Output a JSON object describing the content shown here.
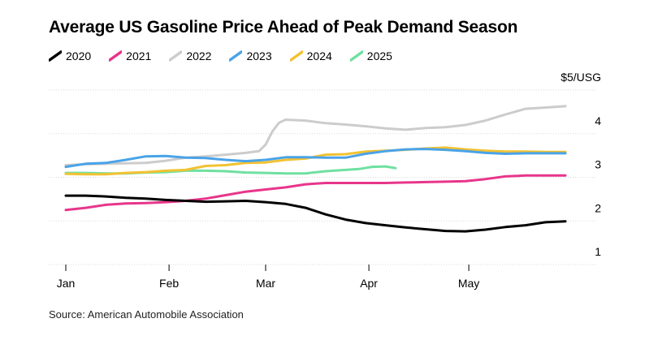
{
  "title": "Average US Gasoline Price Ahead of Peak Demand Season",
  "source": "Source: American Automobile Association",
  "chart_data": {
    "type": "line",
    "title": "Average US Gasoline Price Ahead of Peak Demand Season",
    "xlabel": "",
    "ylabel": "",
    "unit_label": "$5/USG",
    "x_ticks": [
      {
        "label": "Jan",
        "day": 0
      },
      {
        "label": "Feb",
        "day": 31
      },
      {
        "label": "Mar",
        "day": 60
      },
      {
        "label": "Apr",
        "day": 91
      },
      {
        "label": "May",
        "day": 121
      }
    ],
    "y_ticks": [
      {
        "label": "$5/USG",
        "value": 5
      },
      {
        "label": "4",
        "value": 4
      },
      {
        "label": "3",
        "value": 3
      },
      {
        "label": "2",
        "value": 2
      },
      {
        "label": "1",
        "value": 1
      }
    ],
    "xlim": [
      0,
      152
    ],
    "ylim": [
      1,
      5
    ],
    "grid": true,
    "legend_position": "top-left",
    "series": [
      {
        "name": "2020",
        "color": "#000000",
        "x": [
          0,
          6,
          12,
          18,
          24,
          30,
          36,
          42,
          48,
          54,
          60,
          66,
          72,
          78,
          84,
          90,
          96,
          102,
          108,
          114,
          120,
          126,
          132,
          138,
          144,
          150
        ],
        "values": [
          2.58,
          2.58,
          2.56,
          2.53,
          2.51,
          2.48,
          2.46,
          2.44,
          2.45,
          2.46,
          2.43,
          2.39,
          2.3,
          2.15,
          2.03,
          1.95,
          1.9,
          1.85,
          1.81,
          1.77,
          1.76,
          1.8,
          1.86,
          1.9,
          1.97,
          1.99
        ]
      },
      {
        "name": "2021",
        "color": "#e8358b",
        "x": [
          0,
          6,
          12,
          18,
          24,
          30,
          36,
          42,
          48,
          54,
          60,
          66,
          72,
          78,
          84,
          90,
          96,
          102,
          108,
          114,
          120,
          126,
          132,
          138,
          144,
          150
        ],
        "values": [
          2.25,
          2.3,
          2.37,
          2.4,
          2.41,
          2.43,
          2.46,
          2.51,
          2.59,
          2.67,
          2.72,
          2.77,
          2.84,
          2.87,
          2.87,
          2.87,
          2.87,
          2.88,
          2.89,
          2.9,
          2.91,
          2.96,
          3.02,
          3.04,
          3.04,
          3.04
        ]
      },
      {
        "name": "2022",
        "color": "#cccccc",
        "x": [
          0,
          6,
          12,
          18,
          24,
          30,
          36,
          42,
          48,
          54,
          58,
          60,
          62,
          64,
          66,
          72,
          78,
          84,
          90,
          96,
          102,
          108,
          114,
          120,
          126,
          132,
          138,
          144,
          150
        ],
        "values": [
          3.28,
          3.3,
          3.31,
          3.32,
          3.33,
          3.38,
          3.45,
          3.48,
          3.52,
          3.56,
          3.6,
          3.75,
          4.05,
          4.25,
          4.32,
          4.3,
          4.24,
          4.21,
          4.17,
          4.12,
          4.09,
          4.13,
          4.15,
          4.2,
          4.3,
          4.44,
          4.57,
          4.6,
          4.63
        ]
      },
      {
        "name": "2023",
        "color": "#4aa3e8",
        "x": [
          0,
          6,
          12,
          18,
          24,
          30,
          36,
          42,
          48,
          54,
          60,
          66,
          72,
          78,
          84,
          90,
          96,
          102,
          108,
          114,
          120,
          126,
          132,
          138,
          144,
          150
        ],
        "values": [
          3.24,
          3.31,
          3.33,
          3.4,
          3.48,
          3.49,
          3.45,
          3.44,
          3.4,
          3.37,
          3.4,
          3.46,
          3.46,
          3.45,
          3.45,
          3.54,
          3.6,
          3.64,
          3.65,
          3.63,
          3.6,
          3.56,
          3.54,
          3.55,
          3.55,
          3.55
        ]
      },
      {
        "name": "2024",
        "color": "#f2c232",
        "x": [
          0,
          6,
          12,
          18,
          24,
          30,
          36,
          42,
          48,
          54,
          60,
          66,
          72,
          78,
          84,
          90,
          96,
          102,
          108,
          114,
          120,
          126,
          132,
          138,
          144,
          150
        ],
        "values": [
          3.08,
          3.07,
          3.07,
          3.1,
          3.12,
          3.15,
          3.17,
          3.26,
          3.28,
          3.33,
          3.34,
          3.4,
          3.43,
          3.52,
          3.53,
          3.59,
          3.61,
          3.63,
          3.66,
          3.68,
          3.64,
          3.61,
          3.59,
          3.59,
          3.58,
          3.58
        ]
      },
      {
        "name": "2025",
        "color": "#6fe0a0",
        "x": [
          0,
          6,
          12,
          18,
          24,
          30,
          36,
          42,
          48,
          54,
          60,
          66,
          72,
          78,
          84,
          88,
          92,
          96,
          99
        ],
        "values": [
          3.1,
          3.1,
          3.09,
          3.09,
          3.11,
          3.12,
          3.15,
          3.15,
          3.14,
          3.11,
          3.1,
          3.09,
          3.09,
          3.14,
          3.17,
          3.19,
          3.24,
          3.25,
          3.21
        ]
      }
    ]
  }
}
